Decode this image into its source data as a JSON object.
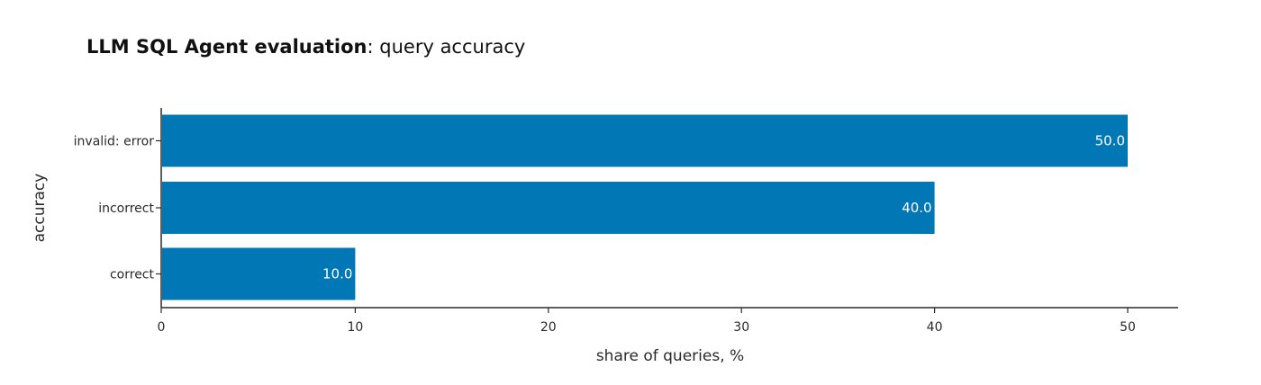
{
  "chart_data": {
    "type": "bar",
    "orientation": "horizontal",
    "title_bold": "LLM SQL Agent evaluation",
    "title_rest": ": query accuracy",
    "xlabel": "share of queries, %",
    "ylabel": "accuracy",
    "categories": [
      "invalid: error",
      "incorrect",
      "correct"
    ],
    "values": [
      50.0,
      40.0,
      10.0
    ],
    "data_labels": [
      "50.0",
      "40.0",
      "10.0"
    ],
    "xlim": [
      0,
      52.6
    ],
    "xticks": [
      0,
      10,
      20,
      30,
      40,
      50
    ],
    "xtick_labels": [
      "0",
      "10",
      "20",
      "30",
      "40",
      "50"
    ],
    "grid": false,
    "bar_color": "#0277b6"
  }
}
